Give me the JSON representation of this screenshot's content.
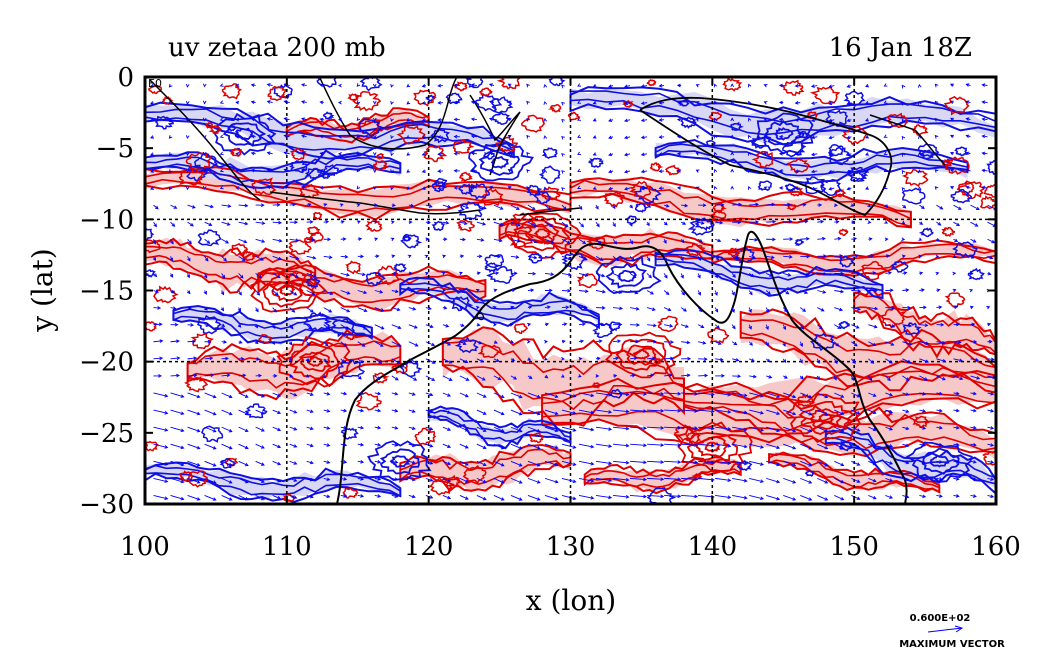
{
  "title_left": "uv zetaa 200 mb",
  "title_right": "16 Jan 18Z",
  "corner_label": "E0",
  "max_vector": {
    "value": "0.600E+02",
    "label": "MAXIMUM VECTOR"
  },
  "colors": {
    "positive_contour": "#e00000",
    "negative_contour": "#1010e0",
    "positive_fill": "#f7c8c8",
    "negative_fill": "#d8d8f4",
    "vector": "#0000ff",
    "coast": "#000000"
  },
  "chart_data": {
    "type": "contour",
    "title": "uv zetaa 200 mb",
    "subtitle": "16 Jan 18Z",
    "xlabel": "x (lon)",
    "ylabel": "y (lat)",
    "xlim": [
      100,
      160
    ],
    "ylim": [
      -30,
      0
    ],
    "x_ticks": [
      100,
      110,
      120,
      130,
      140,
      150,
      160
    ],
    "x_tick_labels": [
      "100",
      "110",
      "120",
      "130",
      "140",
      "150",
      "160"
    ],
    "y_ticks": [
      0,
      -5,
      -10,
      -15,
      -20,
      -25,
      -30
    ],
    "y_tick_labels": [
      "0",
      "−5",
      "−10",
      "−15",
      "−20",
      "−25",
      "−30"
    ],
    "gridlines_lon": [
      110,
      120,
      130,
      140,
      150
    ],
    "gridlines_lat": [
      -10,
      -20
    ],
    "grid": true,
    "fields": [
      "absolute vorticity (zetaa) contours",
      "wind vectors (uv)"
    ],
    "positive_features": [
      {
        "lon": 135,
        "lat": -19.5
      },
      {
        "lon": 148,
        "lat": -24
      },
      {
        "lon": 112,
        "lat": -20
      },
      {
        "lon": 128,
        "lat": -11
      },
      {
        "lon": 110,
        "lat": -15
      },
      {
        "lon": 140,
        "lat": -26
      }
    ],
    "negative_features": [
      {
        "lon": 107,
        "lat": -4
      },
      {
        "lon": 125,
        "lat": -6
      },
      {
        "lon": 145,
        "lat": -4
      },
      {
        "lon": 156,
        "lat": -27
      },
      {
        "lon": 118,
        "lat": -27
      },
      {
        "lon": 134,
        "lat": -14
      }
    ],
    "max_vector": 60
  }
}
